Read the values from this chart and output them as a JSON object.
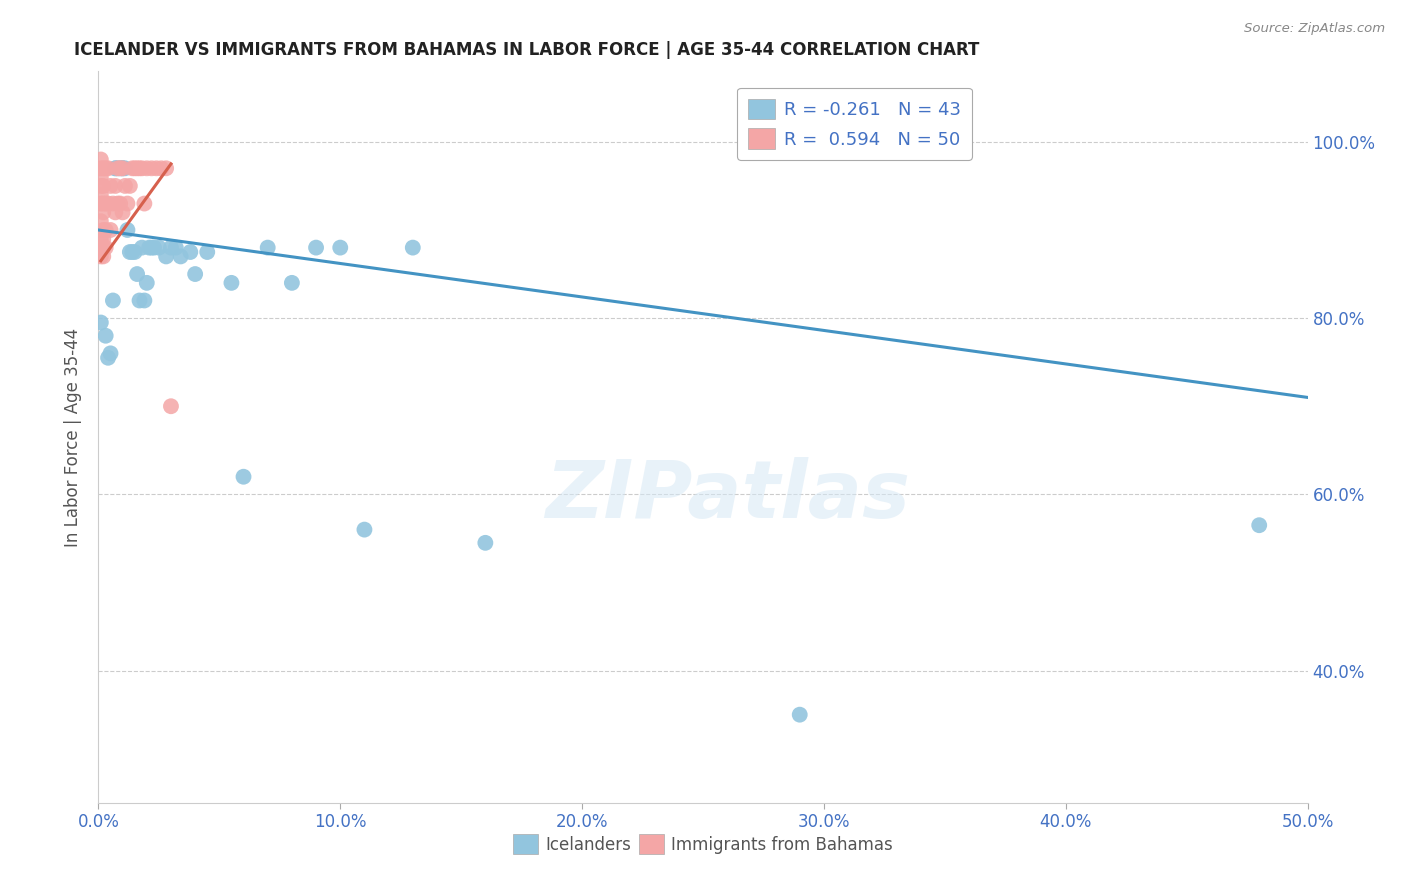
{
  "title": "ICELANDER VS IMMIGRANTS FROM BAHAMAS IN LABOR FORCE | AGE 35-44 CORRELATION CHART",
  "source": "Source: ZipAtlas.com",
  "ylabel_label": "In Labor Force | Age 35-44",
  "xlim": [
    0.0,
    0.5
  ],
  "ylim": [
    0.25,
    1.08
  ],
  "xtick_labels": [
    "0.0%",
    "10.0%",
    "20.0%",
    "30.0%",
    "40.0%",
    "50.0%"
  ],
  "xtick_values": [
    0.0,
    0.1,
    0.2,
    0.3,
    0.4,
    0.5
  ],
  "ytick_labels": [
    "40.0%",
    "60.0%",
    "80.0%",
    "100.0%"
  ],
  "ytick_values": [
    0.4,
    0.6,
    0.8,
    1.0
  ],
  "legend_blue_r": "-0.261",
  "legend_blue_n": "43",
  "legend_pink_r": "0.594",
  "legend_pink_n": "50",
  "blue_color": "#92c5de",
  "pink_color": "#f4a6a6",
  "blue_line_color": "#4393c3",
  "pink_line_color": "#d6604d",
  "watermark_text": "ZIPatlas",
  "blue_scatter_x": [
    0.001,
    0.003,
    0.004,
    0.005,
    0.006,
    0.007,
    0.007,
    0.008,
    0.009,
    0.01,
    0.01,
    0.011,
    0.012,
    0.013,
    0.014,
    0.015,
    0.016,
    0.017,
    0.018,
    0.019,
    0.02,
    0.021,
    0.022,
    0.023,
    0.025,
    0.028,
    0.03,
    0.032,
    0.034,
    0.038,
    0.04,
    0.045,
    0.055,
    0.06,
    0.07,
    0.08,
    0.09,
    0.1,
    0.11,
    0.13,
    0.16,
    0.29,
    0.48
  ],
  "blue_scatter_y": [
    0.795,
    0.78,
    0.755,
    0.76,
    0.82,
    0.97,
    0.97,
    0.97,
    0.97,
    0.97,
    0.97,
    0.97,
    0.9,
    0.875,
    0.875,
    0.875,
    0.85,
    0.82,
    0.88,
    0.82,
    0.84,
    0.88,
    0.88,
    0.88,
    0.88,
    0.87,
    0.88,
    0.88,
    0.87,
    0.875,
    0.85,
    0.875,
    0.84,
    0.62,
    0.88,
    0.84,
    0.88,
    0.88,
    0.56,
    0.88,
    0.545,
    0.35,
    0.565
  ],
  "pink_scatter_x": [
    0.001,
    0.001,
    0.001,
    0.001,
    0.001,
    0.001,
    0.001,
    0.001,
    0.001,
    0.001,
    0.002,
    0.002,
    0.002,
    0.002,
    0.002,
    0.002,
    0.002,
    0.002,
    0.003,
    0.003,
    0.003,
    0.003,
    0.004,
    0.004,
    0.005,
    0.005,
    0.006,
    0.007,
    0.007,
    0.008,
    0.008,
    0.009,
    0.009,
    0.01,
    0.01,
    0.011,
    0.012,
    0.013,
    0.014,
    0.015,
    0.016,
    0.017,
    0.018,
    0.019,
    0.02,
    0.022,
    0.024,
    0.026,
    0.028,
    0.03
  ],
  "pink_scatter_y": [
    0.87,
    0.88,
    0.89,
    0.91,
    0.93,
    0.94,
    0.95,
    0.96,
    0.97,
    0.98,
    0.87,
    0.88,
    0.89,
    0.9,
    0.92,
    0.93,
    0.95,
    0.97,
    0.88,
    0.9,
    0.93,
    0.97,
    0.93,
    0.97,
    0.9,
    0.95,
    0.93,
    0.92,
    0.95,
    0.93,
    0.97,
    0.93,
    0.97,
    0.92,
    0.97,
    0.95,
    0.93,
    0.95,
    0.97,
    0.97,
    0.97,
    0.97,
    0.97,
    0.93,
    0.97,
    0.97,
    0.97,
    0.97,
    0.97,
    0.7
  ],
  "blue_trendline_x": [
    0.0,
    0.5
  ],
  "blue_trendline_y": [
    0.9,
    0.71
  ],
  "pink_trendline_x": [
    0.001,
    0.03
  ],
  "pink_trendline_y": [
    0.865,
    0.975
  ]
}
